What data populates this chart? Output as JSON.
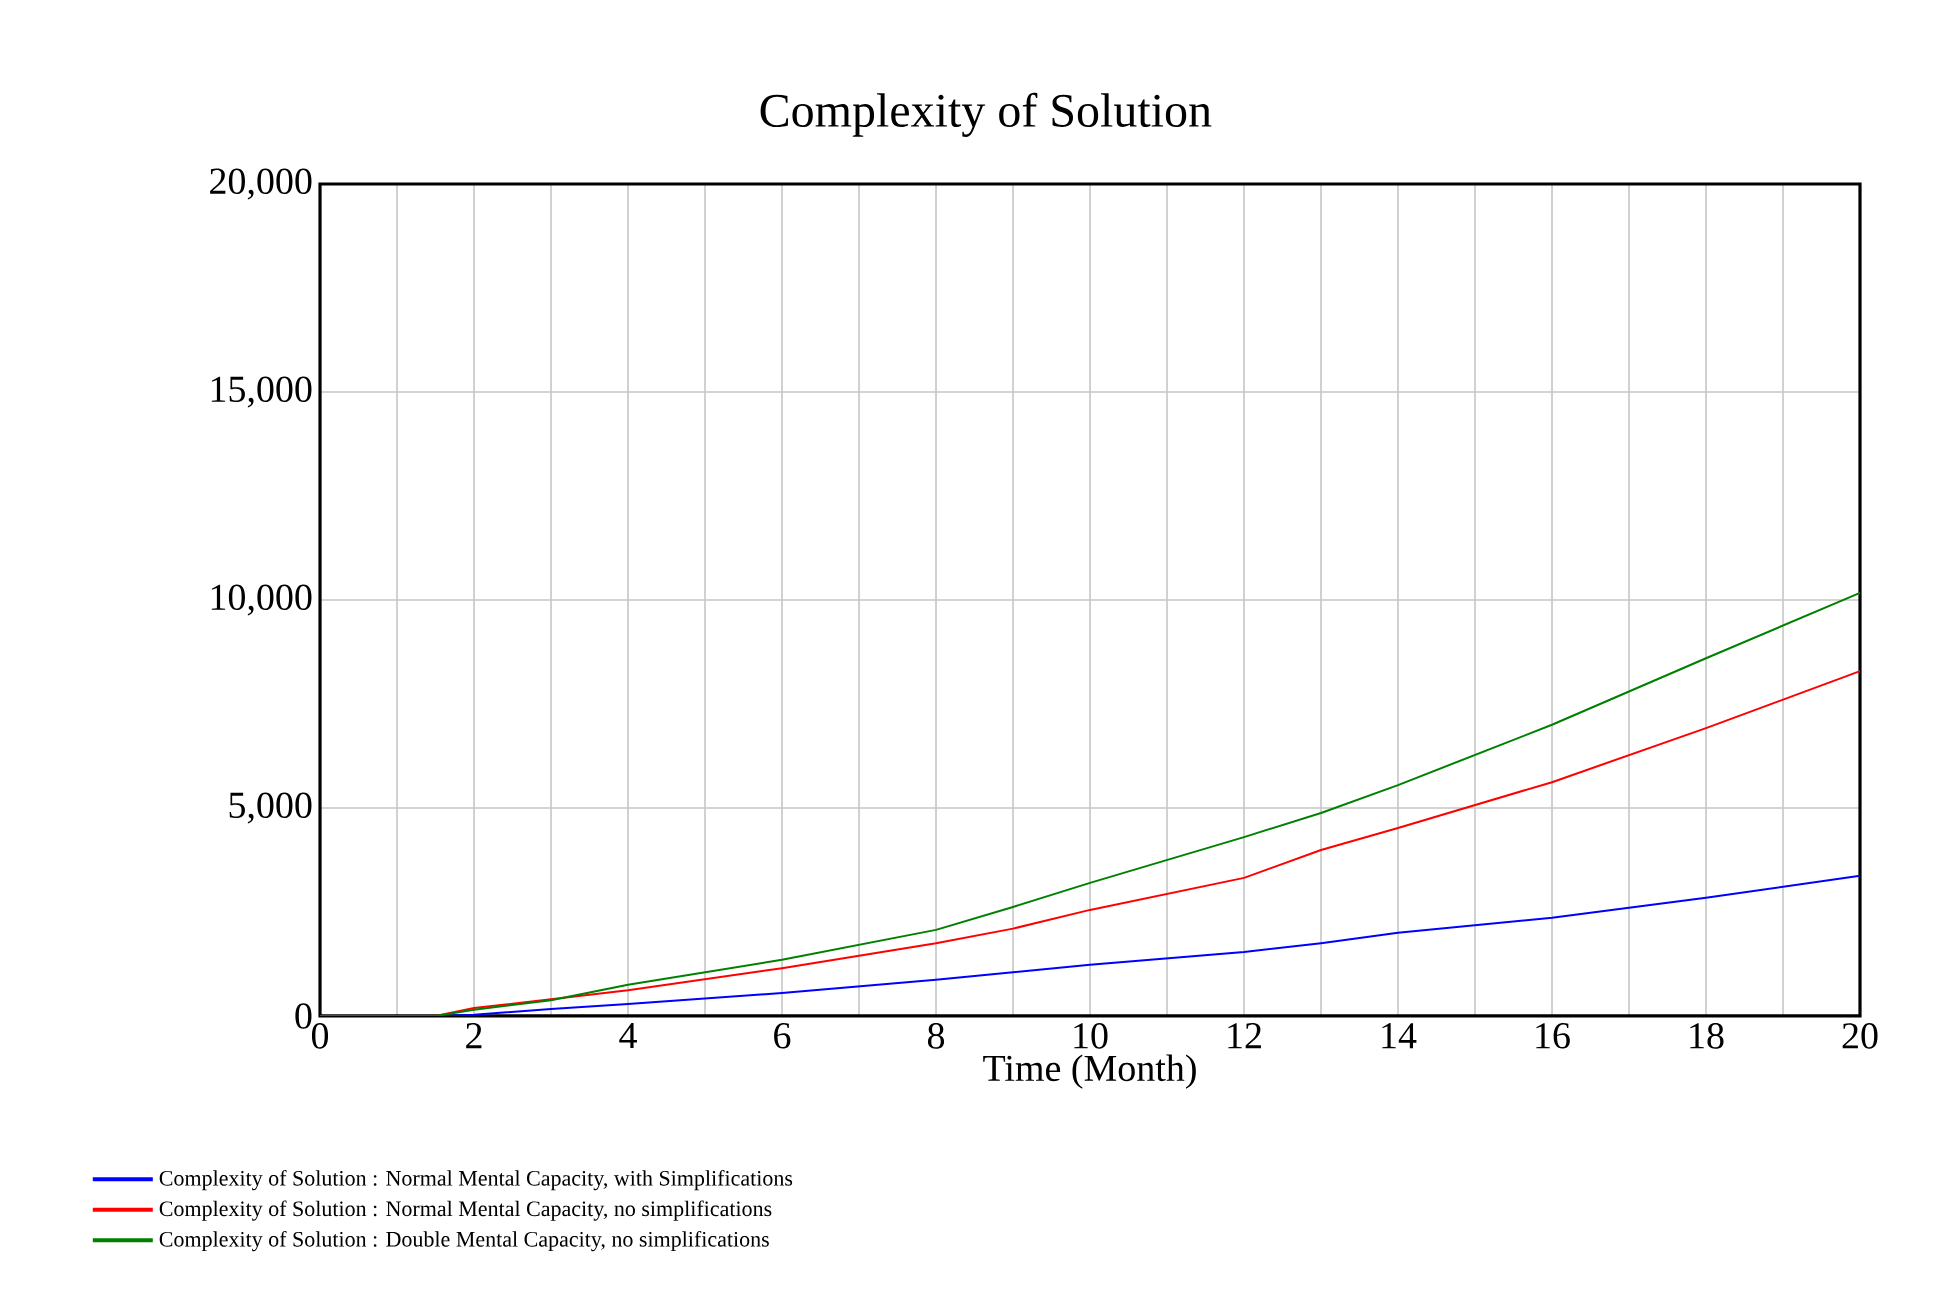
{
  "chart_data": {
    "type": "line",
    "title": "Complexity of Solution",
    "xlabel": "Time (Month)",
    "x": [
      0,
      1.5,
      2,
      3,
      4,
      6,
      8,
      9,
      10,
      12,
      13,
      14,
      16,
      18,
      20
    ],
    "series": [
      {
        "name": "Complexity of Solution : Normal Mental Capacity, with Simplifications",
        "color": "#0000ff",
        "values": [
          0,
          0,
          30,
          170,
          290,
          550,
          870,
          1050,
          1230,
          1540,
          1750,
          2000,
          2360,
          2840,
          3370
        ]
      },
      {
        "name": "Complexity of Solution : Normal Mental Capacity, no simplifications",
        "color": "#ff0000",
        "values": [
          0,
          0,
          190,
          400,
          620,
          1150,
          1750,
          2100,
          2550,
          3320,
          3990,
          4520,
          5620,
          6920,
          8290
        ]
      },
      {
        "name": "Complexity of Solution : Double Mental Capacity, no simplifications",
        "color": "#008000",
        "values": [
          0,
          0,
          150,
          380,
          750,
          1350,
          2070,
          2620,
          3200,
          4300,
          4880,
          5550,
          7000,
          8600,
          10170
        ]
      }
    ],
    "xlim": [
      0,
      20
    ],
    "ylim": [
      0,
      20000
    ],
    "xticks": [
      0,
      {
        "value": 1,
        "label": null
      },
      2,
      {
        "value": 3,
        "label": null
      },
      4,
      {
        "value": 5,
        "label": null
      },
      6,
      {
        "value": 7,
        "label": null
      },
      8,
      {
        "value": 9,
        "label": null
      },
      10,
      {
        "value": 11,
        "label": null
      },
      12,
      {
        "value": 13,
        "label": null
      },
      14,
      {
        "value": 15,
        "label": null
      },
      16,
      {
        "value": 17,
        "label": null
      },
      18,
      {
        "value": 19,
        "label": null
      },
      20
    ],
    "yticks": [
      0,
      {
        "value": 5000,
        "label": "5,000"
      },
      {
        "value": 10000,
        "label": "10,000"
      },
      {
        "value": 15000,
        "label": "15,000"
      },
      {
        "value": 20000,
        "label": "20,000"
      }
    ],
    "grid": true,
    "legend": "bottom",
    "marker": "none",
    "line_style": "solid"
  }
}
